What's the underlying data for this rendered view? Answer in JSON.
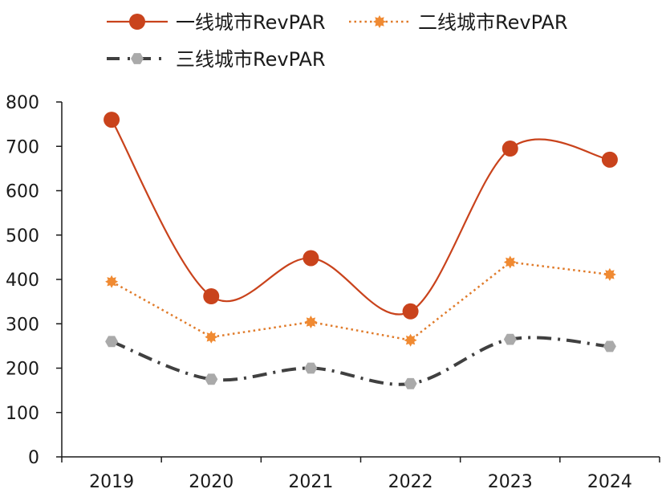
{
  "chart_data": {
    "type": "line",
    "title": "",
    "xlabel": "",
    "ylabel": "",
    "categories": [
      "2019",
      "2020",
      "2021",
      "2022",
      "2023",
      "2024"
    ],
    "ylim": [
      0,
      800
    ],
    "yticks": [
      "0",
      "100",
      "200",
      "300",
      "400",
      "500",
      "600",
      "700",
      "800"
    ],
    "grid": false,
    "legend_position": "top",
    "series": [
      {
        "name": "一线城市RevPAR",
        "values": [
          760,
          362,
          448,
          328,
          695,
          670
        ],
        "color": "#c9431c",
        "line_style": "solid",
        "marker": "circle",
        "smooth": true
      },
      {
        "name": "二线城市RevPAR",
        "values": [
          395,
          270,
          304,
          263,
          439,
          411
        ],
        "color": "#e07b2a",
        "line_style": "dotted",
        "marker": "star",
        "smooth": false
      },
      {
        "name": "三线城市RevPAR",
        "values": [
          260,
          175,
          200,
          165,
          265,
          249
        ],
        "color": "#404040",
        "line_style": "dashdot",
        "marker": "hexagon",
        "smooth": true
      }
    ]
  }
}
